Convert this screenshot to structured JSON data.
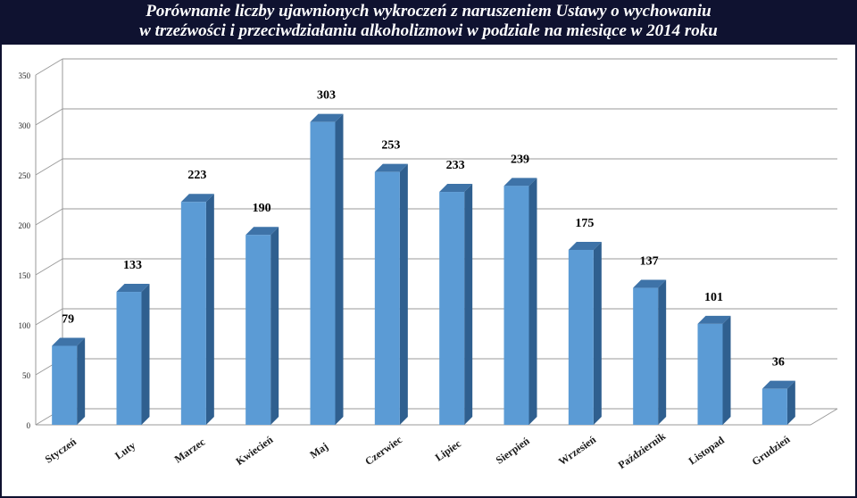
{
  "chart_data": {
    "type": "bar",
    "title_line1": "Porównanie liczby ujawnionych wykroczeń z naruszeniem Ustawy o wychowaniu",
    "title_line2": "w trzeźwości i przeciwdziałaniu alkoholizmowi w podziale na miesiące w 2014 roku",
    "categories": [
      "Styczeń",
      "Luty",
      "Marzec",
      "Kwiecień",
      "Maj",
      "Czerwiec",
      "Lipiec",
      "Sierpień",
      "Wrzesień",
      "Październik",
      "Listopad",
      "Grudzień"
    ],
    "values": [
      79,
      133,
      223,
      190,
      303,
      253,
      233,
      239,
      175,
      137,
      101,
      36
    ],
    "ylim": [
      0,
      350
    ],
    "yticks": [
      "0",
      "50",
      "100",
      "150",
      "200",
      "250",
      "300",
      "350"
    ],
    "xlabel": "",
    "ylabel": "",
    "grid": true,
    "colors": {
      "bar_front": "#5b9bd5",
      "bar_side": "#2f5f8f",
      "bar_top": "#3e73a8",
      "label": "#000000",
      "background": "#0f1230"
    }
  }
}
